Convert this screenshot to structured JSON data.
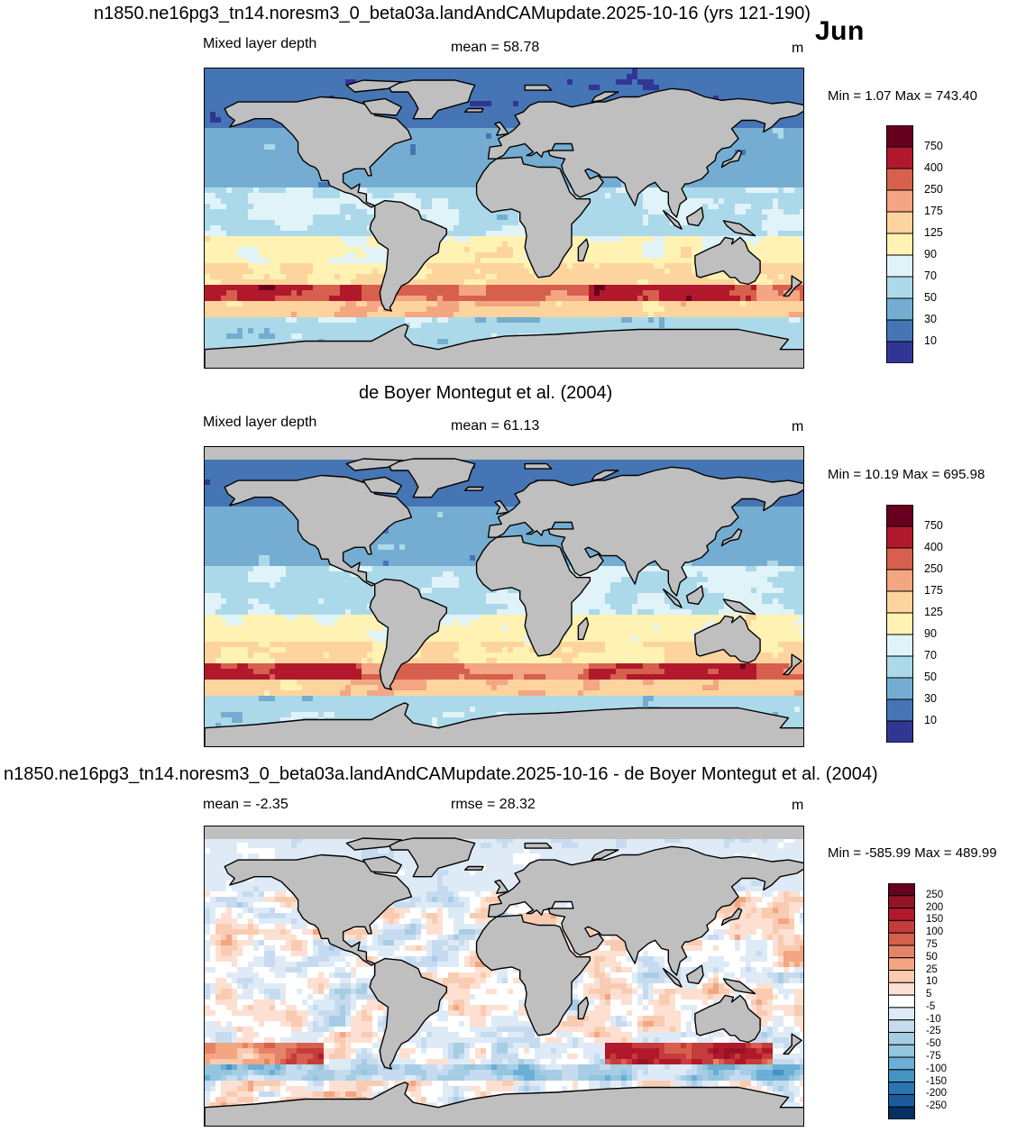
{
  "main_title": "n1850.ne16pg3_tn14.noresm3_0_beta03a.landAndCAMupdate.2025-10-16 (yrs 121-190)",
  "month": "Jun",
  "panels": [
    {
      "title": "",
      "left_label": "Mixed layer depth",
      "center_label": "mean =  58.78",
      "units": "m",
      "minmax": "Min =   1.07 Max = 743.40",
      "colorbar_levels": [
        "750",
        "400",
        "250",
        "175",
        "125",
        "90",
        "70",
        "50",
        "30",
        "10"
      ],
      "colorbar_colors": [
        "#67001f",
        "#b2182b",
        "#d6604d",
        "#f4a582",
        "#fdd49e",
        "#fff2b3",
        "#e0f3f8",
        "#abd9e9",
        "#74add1",
        "#4575b4",
        "#313695"
      ]
    },
    {
      "title": "de Boyer Montegut et al. (2004)",
      "left_label": "Mixed layer depth",
      "center_label": "mean =  61.13",
      "units": "m",
      "minmax": "Min =  10.19 Max = 695.98",
      "colorbar_levels": [
        "750",
        "400",
        "250",
        "175",
        "125",
        "90",
        "70",
        "50",
        "30",
        "10"
      ],
      "colorbar_colors": [
        "#67001f",
        "#b2182b",
        "#d6604d",
        "#f4a582",
        "#fdd49e",
        "#fff2b3",
        "#e0f3f8",
        "#abd9e9",
        "#74add1",
        "#4575b4",
        "#313695"
      ]
    },
    {
      "title": "n1850.ne16pg3_tn14.noresm3_0_beta03a.landAndCAMupdate.2025-10-16 - de Boyer Montegut et al. (2004)",
      "left_label": "mean =  -2.35",
      "center_label": "rmse =  28.32",
      "units": "m",
      "minmax": "Min = -585.99 Max = 489.99",
      "colorbar_levels": [
        "250",
        "200",
        "150",
        "100",
        "75",
        "50",
        "25",
        "10",
        "5",
        "-5",
        "-10",
        "-25",
        "-50",
        "-75",
        "-100",
        "-150",
        "-200",
        "-250"
      ],
      "colorbar_colors": [
        "#67001f",
        "#941426",
        "#b2182b",
        "#c43c3c",
        "#d6604d",
        "#e58368",
        "#f4a582",
        "#f9cbb1",
        "#fde0d2",
        "#ffffff",
        "#deebf7",
        "#c6dbef",
        "#a6cde3",
        "#92c5de",
        "#6baed6",
        "#4393c3",
        "#2c75b3",
        "#1b5a9c",
        "#053061"
      ]
    }
  ],
  "colors": {
    "land": "#bfbfbf",
    "coast": "#000000"
  }
}
